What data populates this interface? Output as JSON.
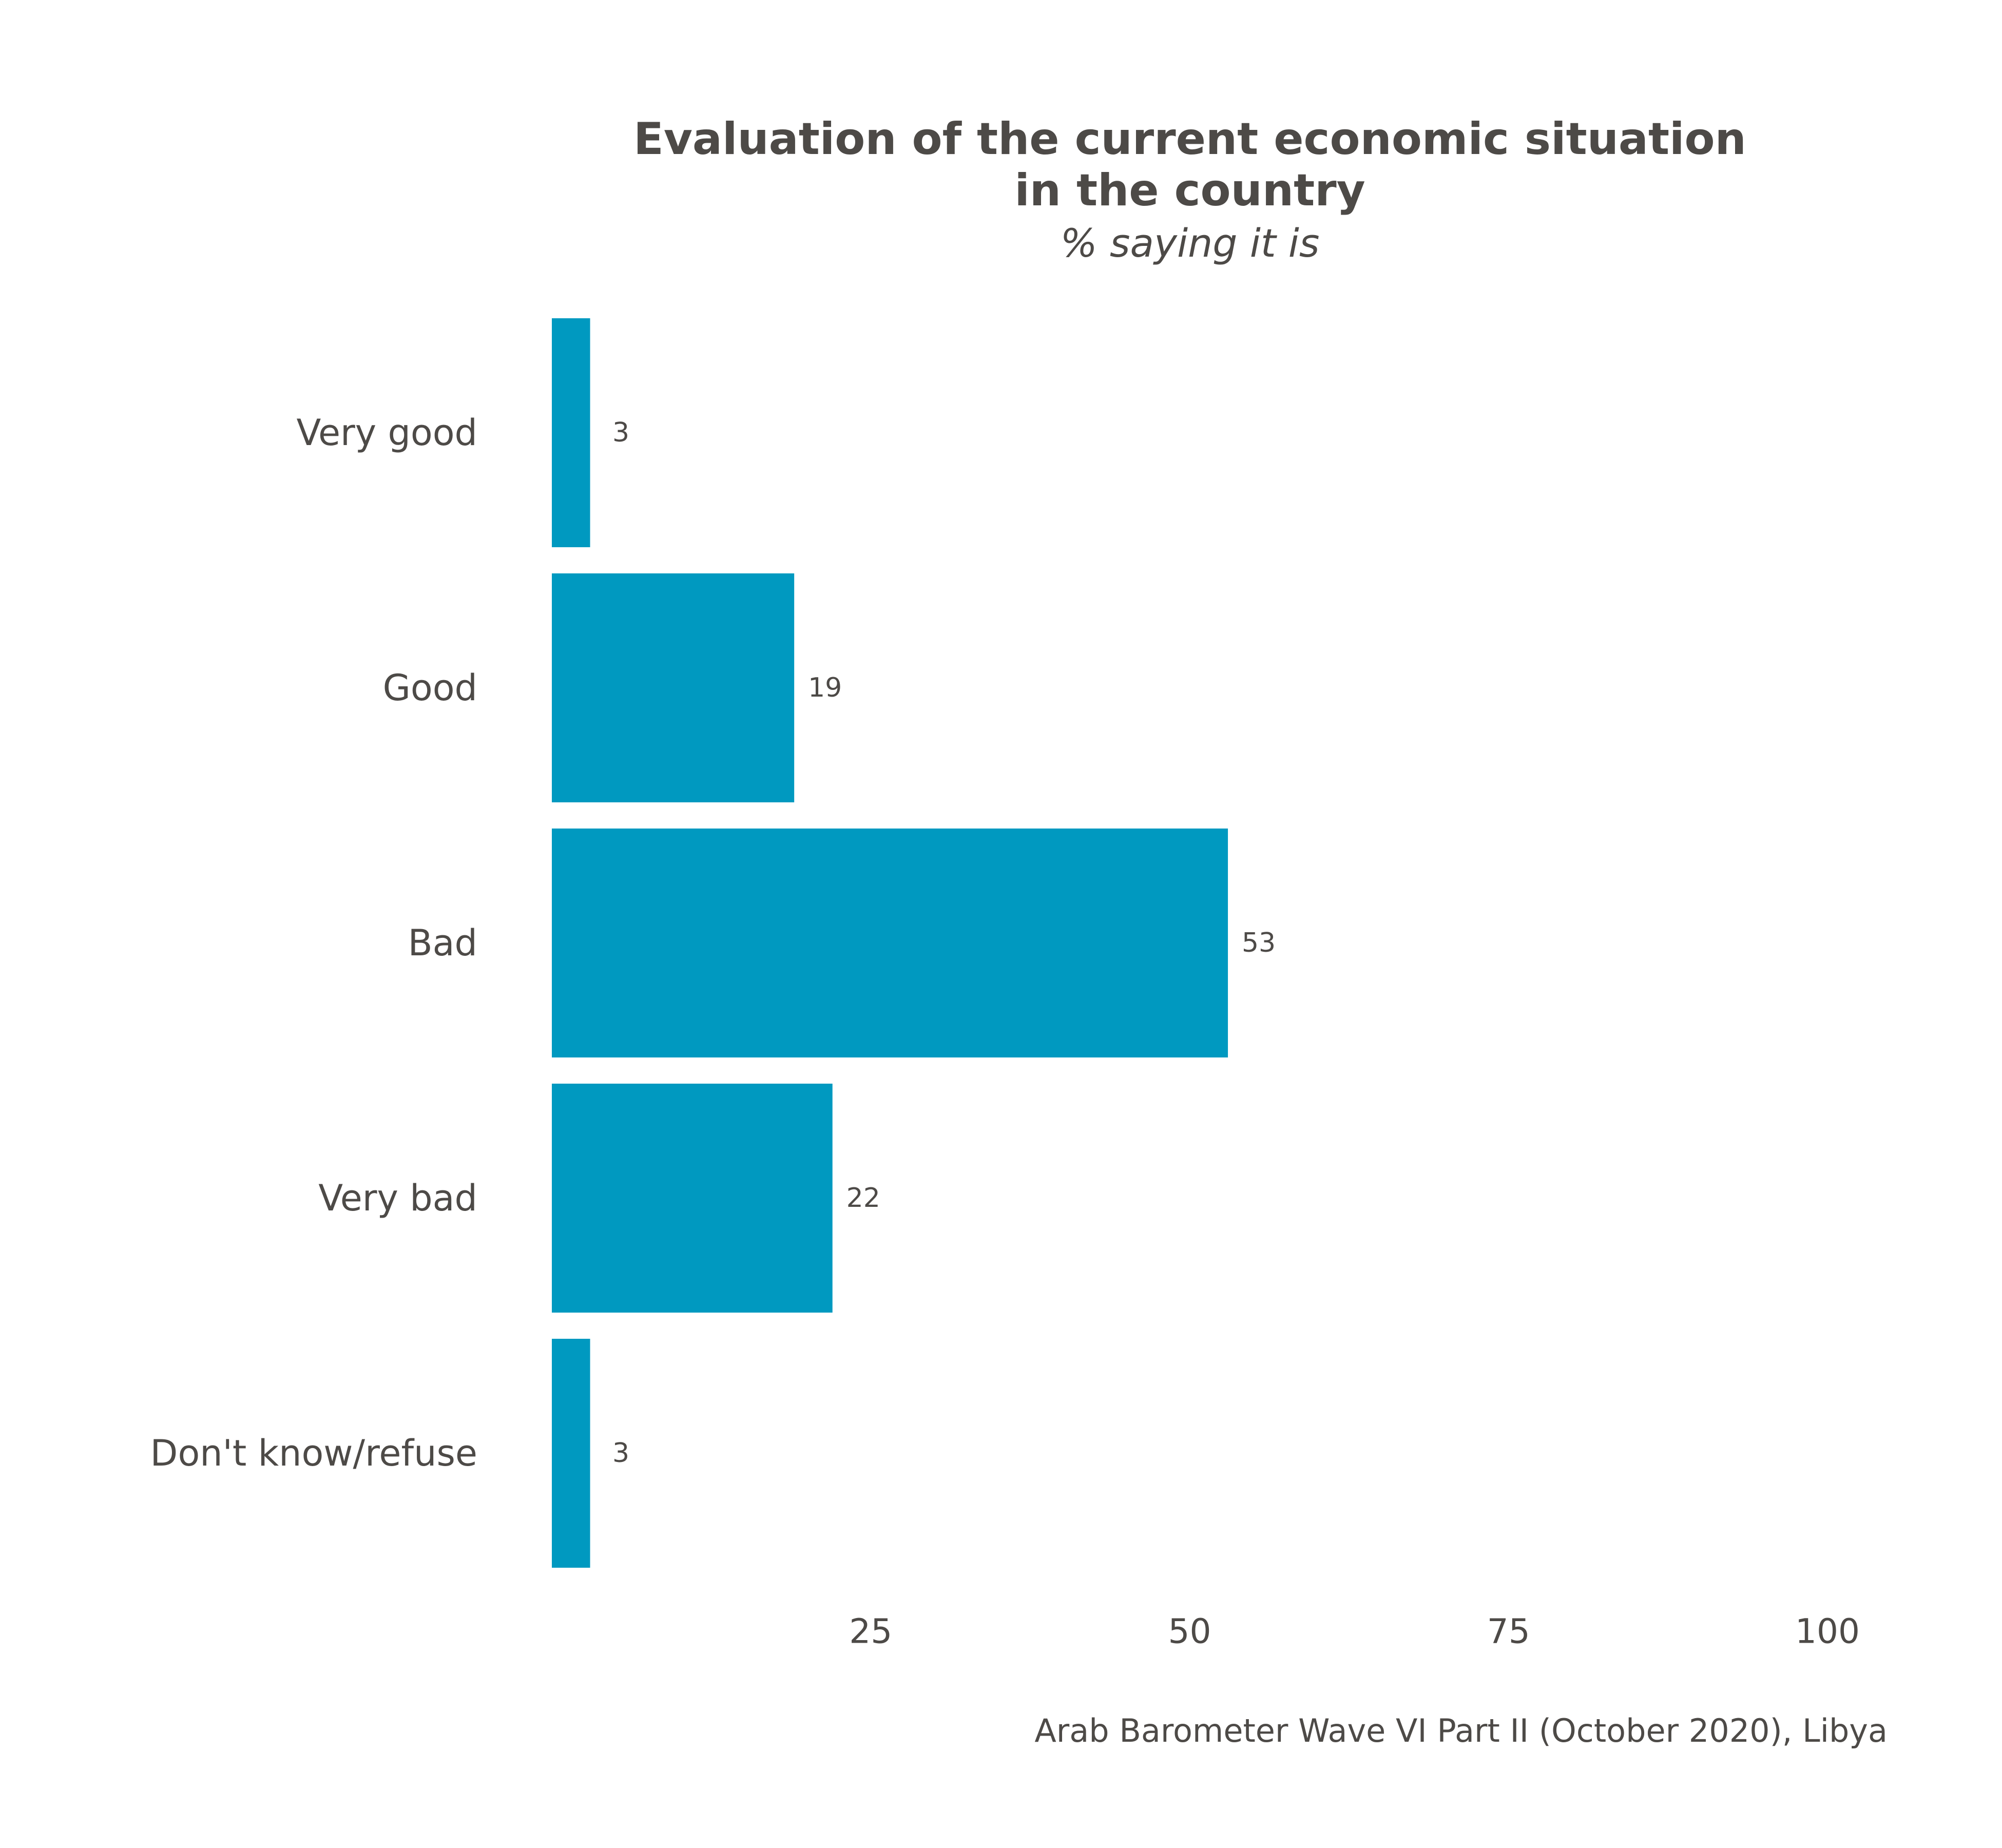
{
  "chart_data": {
    "type": "bar",
    "orientation": "horizontal",
    "title": [
      "Evaluation of the current economic situation",
      "in the country"
    ],
    "subtitle": "% saying it is",
    "categories": [
      "Very good",
      "Good",
      "Bad",
      "Very bad",
      "Don't know/refuse"
    ],
    "values": [
      3,
      19,
      53,
      22,
      3
    ],
    "value_labels": [
      "3",
      "19",
      "53",
      "22",
      "3"
    ],
    "xlim": [
      0,
      100
    ],
    "x_ticks": [
      25,
      50,
      75,
      100
    ],
    "x_tick_labels": [
      "25",
      "50",
      "75",
      "100"
    ],
    "caption": "Arab Barometer Wave VI Part II (October 2020), Libya",
    "grid": false,
    "legend": "none",
    "bar_color": "#0099c0",
    "text_color": "#4d4a47"
  }
}
